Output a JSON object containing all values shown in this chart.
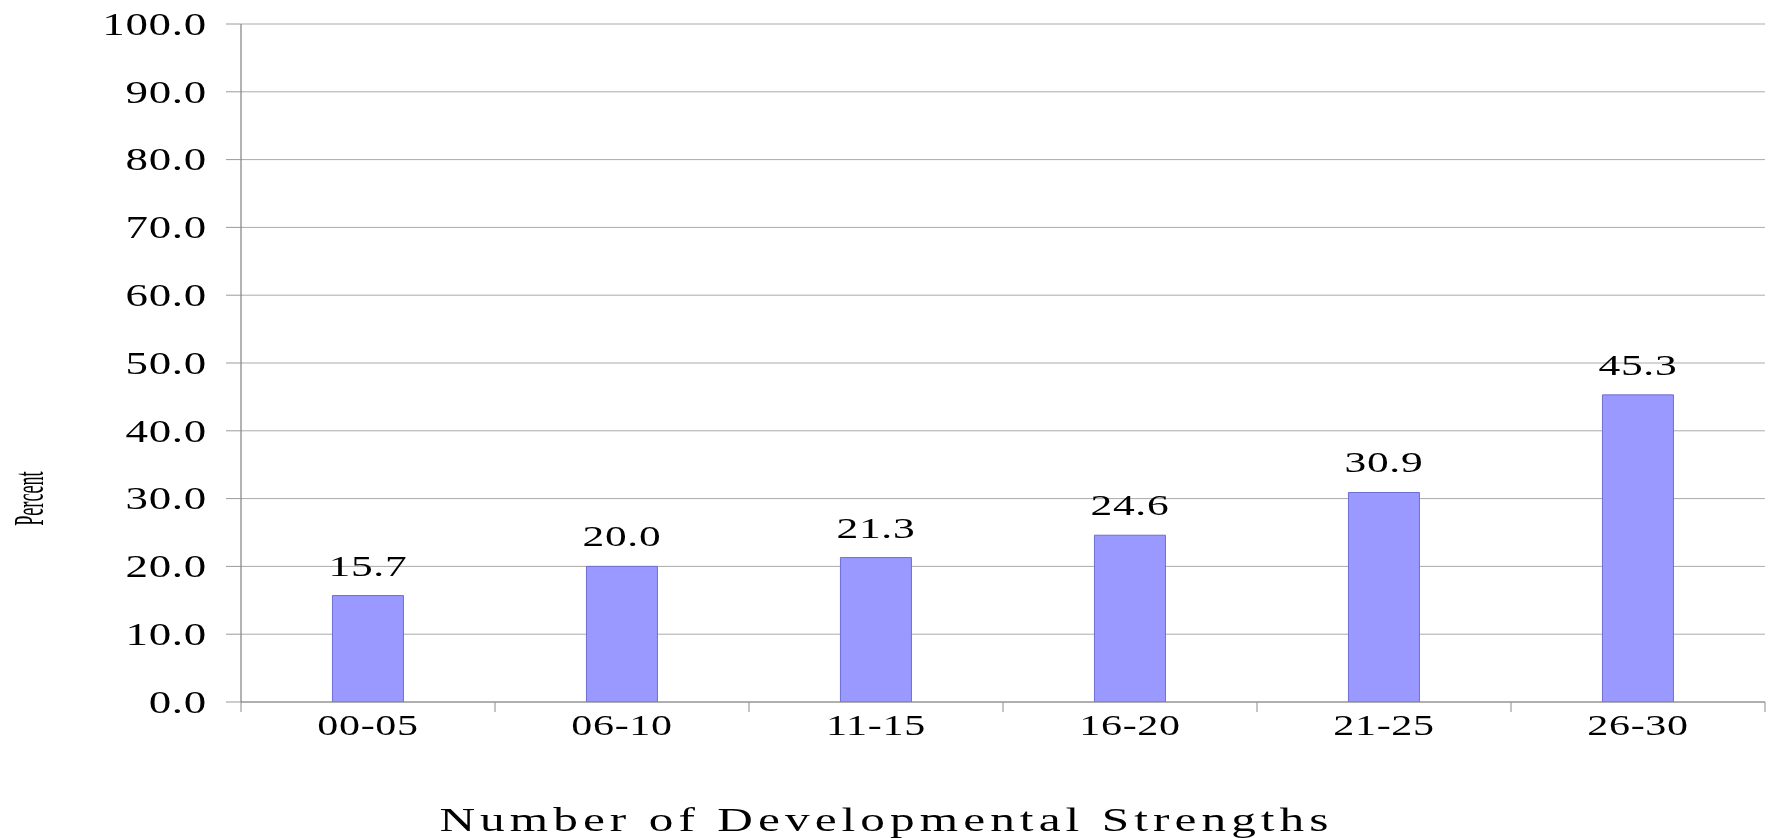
{
  "chart_data": {
    "type": "bar",
    "xlabel": "Number of Developmental Strengths",
    "ylabel": "Percent",
    "categories": [
      "00-05",
      "06-10",
      "11-15",
      "16-20",
      "21-25",
      "26-30"
    ],
    "values": [
      15.7,
      20.0,
      21.3,
      24.6,
      30.9,
      45.3
    ],
    "color": "#9999ff",
    "value_labels": [
      "15.7",
      "20.0",
      "21.3",
      "24.6",
      "30.9",
      "45.3"
    ],
    "ylim": [
      0,
      100
    ],
    "yticks": [
      {
        "value": 0,
        "label": "0.0"
      },
      {
        "value": 10,
        "label": "10.0"
      },
      {
        "value": 20,
        "label": "20.0"
      },
      {
        "value": 30,
        "label": "30.0"
      },
      {
        "value": 40,
        "label": "40.0"
      },
      {
        "value": 50,
        "label": "50.0"
      },
      {
        "value": 60,
        "label": "60.0"
      },
      {
        "value": 70,
        "label": "70.0"
      },
      {
        "value": 80,
        "label": "80.0"
      },
      {
        "value": 90,
        "label": "90.0"
      },
      {
        "value": 100,
        "label": "100.0"
      }
    ],
    "grid": "y"
  }
}
